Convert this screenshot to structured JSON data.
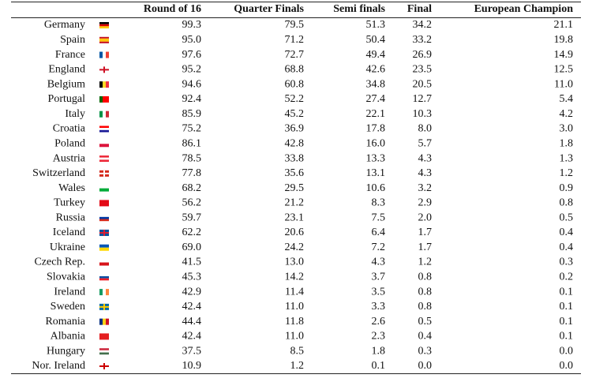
{
  "table": {
    "header": [
      "Round of 16",
      "Quarter Finals",
      "Semi finals",
      "Final",
      "European Champion"
    ],
    "rows": [
      [
        "Germany",
        "99.3",
        "79.5",
        "51.3",
        "34.2",
        "21.1"
      ],
      [
        "Spain",
        "95.0",
        "71.2",
        "50.4",
        "33.2",
        "19.8"
      ],
      [
        "France",
        "97.6",
        "72.7",
        "49.4",
        "26.9",
        "14.9"
      ],
      [
        "England",
        "95.2",
        "68.8",
        "42.6",
        "23.5",
        "12.5"
      ],
      [
        "Belgium",
        "94.6",
        "60.8",
        "34.8",
        "20.5",
        "11.0"
      ],
      [
        "Portugal",
        "92.4",
        "52.2",
        "27.4",
        "12.7",
        "5.4"
      ],
      [
        "Italy",
        "85.9",
        "45.2",
        "22.1",
        "10.3",
        "4.2"
      ],
      [
        "Croatia",
        "75.2",
        "36.9",
        "17.8",
        "8.0",
        "3.0"
      ],
      [
        "Poland",
        "86.1",
        "42.8",
        "16.0",
        "5.7",
        "1.8"
      ],
      [
        "Austria",
        "78.5",
        "33.8",
        "13.3",
        "4.3",
        "1.3"
      ],
      [
        "Switzerland",
        "77.8",
        "35.6",
        "13.1",
        "4.3",
        "1.2"
      ],
      [
        "Wales",
        "68.2",
        "29.5",
        "10.6",
        "3.2",
        "0.9"
      ],
      [
        "Turkey",
        "56.2",
        "21.2",
        "8.3",
        "2.9",
        "0.8"
      ],
      [
        "Russia",
        "59.7",
        "23.1",
        "7.5",
        "2.0",
        "0.5"
      ],
      [
        "Iceland",
        "62.2",
        "20.6",
        "6.4",
        "1.7",
        "0.4"
      ],
      [
        "Ukraine",
        "69.0",
        "24.2",
        "7.2",
        "1.7",
        "0.4"
      ],
      [
        "Czech Rep.",
        "41.5",
        "13.0",
        "4.3",
        "1.2",
        "0.3"
      ],
      [
        "Slovakia",
        "45.3",
        "14.2",
        "3.7",
        "0.8",
        "0.2"
      ],
      [
        "Ireland",
        "42.9",
        "11.4",
        "3.5",
        "0.8",
        "0.1"
      ],
      [
        "Sweden",
        "42.4",
        "11.0",
        "3.3",
        "0.8",
        "0.1"
      ],
      [
        "Romania",
        "44.4",
        "11.8",
        "2.6",
        "0.5",
        "0.1"
      ],
      [
        "Albania",
        "42.4",
        "11.0",
        "2.3",
        "0.4",
        "0.1"
      ],
      [
        "Hungary",
        "37.5",
        "8.5",
        "1.8",
        "0.3",
        "0.0"
      ],
      [
        "Nor. Ireland",
        "10.9",
        "1.2",
        "0.1",
        "0.0",
        "0.0"
      ]
    ]
  }
}
